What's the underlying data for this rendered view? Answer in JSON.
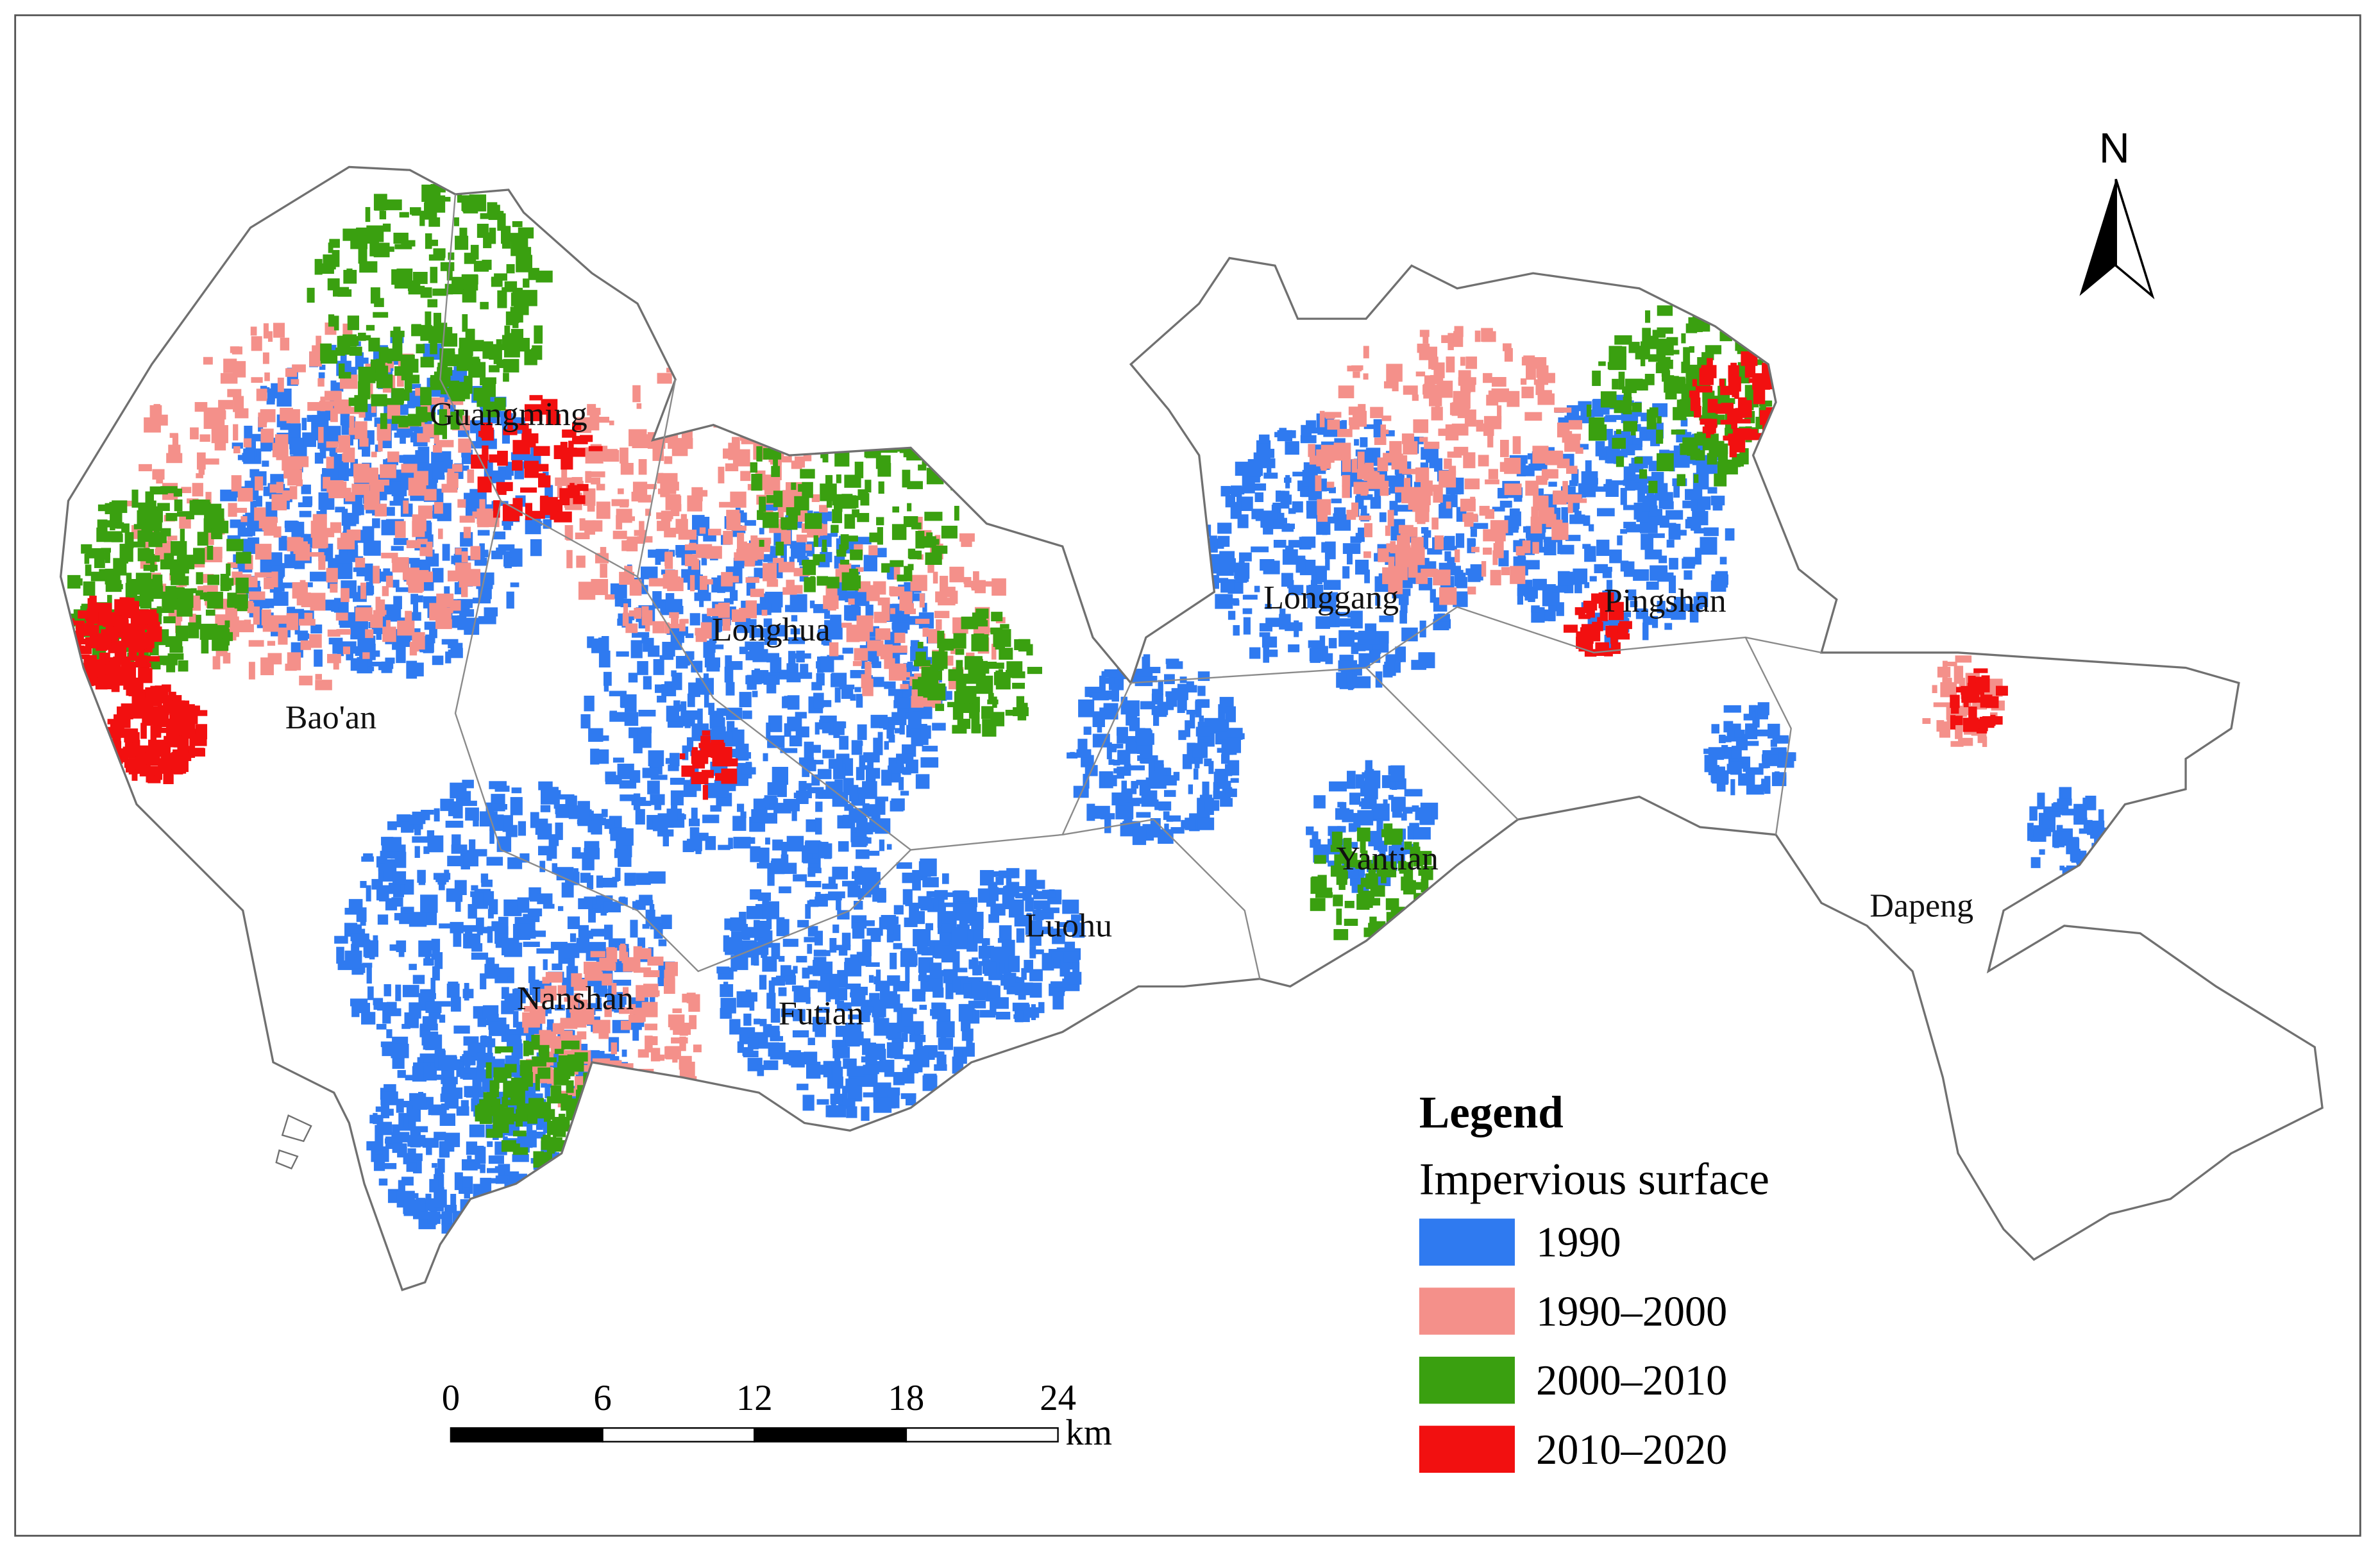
{
  "north_label": "N",
  "districts": [
    "Guangming",
    "Longhua",
    "Bao'an",
    "Longgang",
    "Pingshan",
    "Yantian",
    "Dapeng",
    "Luohu",
    "Nanshan",
    "Futian"
  ],
  "legend": {
    "title": "Legend",
    "subtitle": "Impervious surface",
    "items": [
      {
        "label": "1990",
        "color": "#2f7af0"
      },
      {
        "label": "1990–2000",
        "color": "#f4908a"
      },
      {
        "label": "2000–2010",
        "color": "#3aa010"
      },
      {
        "label": "2010–2020",
        "color": "#f21010"
      }
    ]
  },
  "scale_bar": {
    "ticks": [
      0,
      6,
      12,
      18,
      24
    ],
    "unit": "km"
  }
}
